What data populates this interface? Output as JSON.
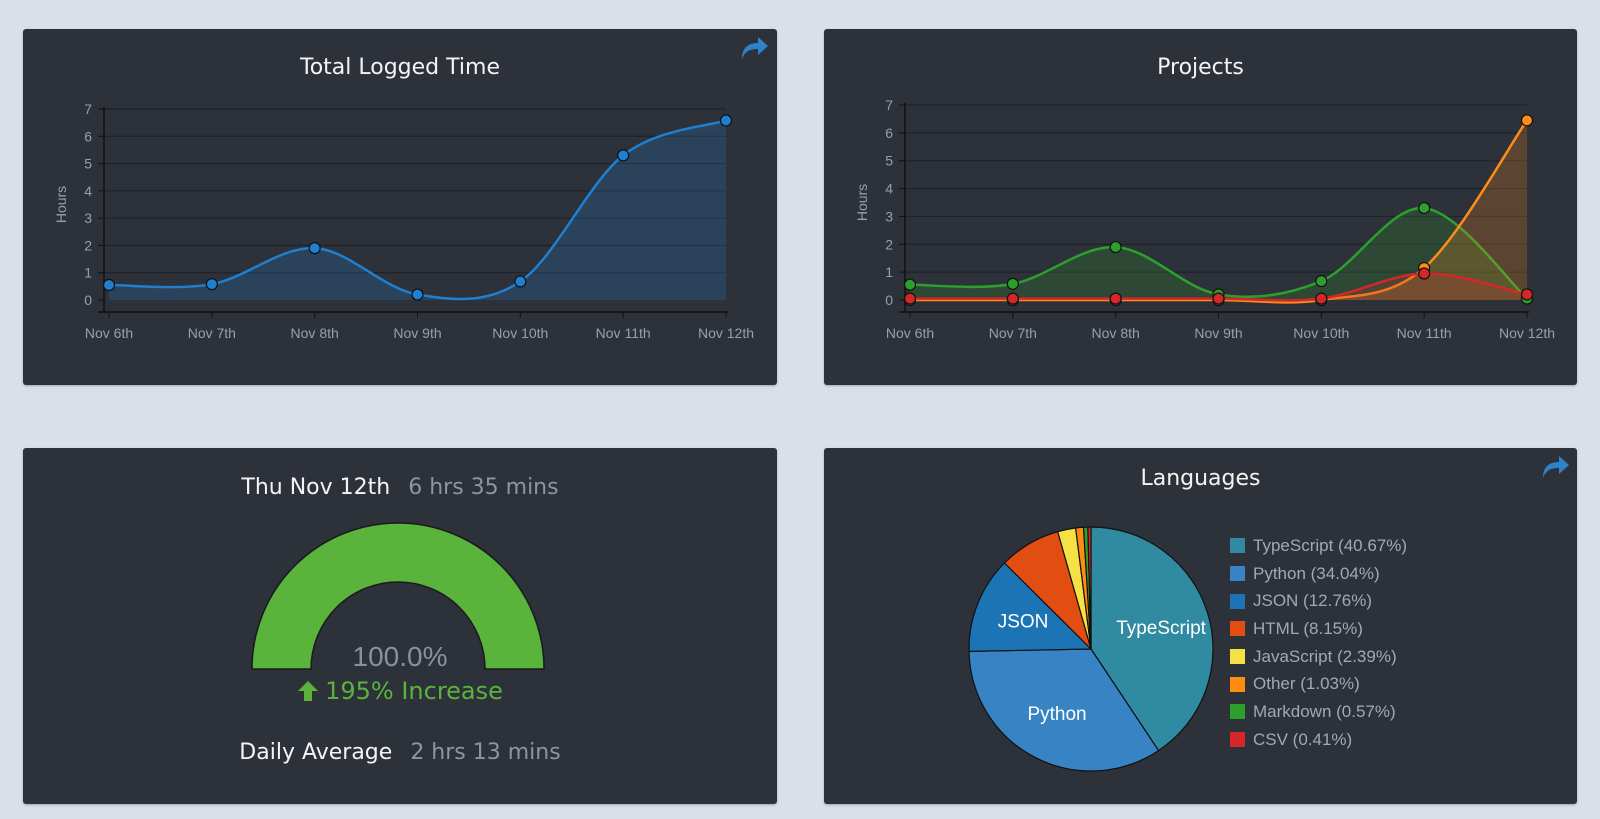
{
  "colors": {
    "background": "#d9e0e7",
    "card": "#2d3139",
    "axis_text": "#a0a6ae",
    "grid": "#1f2227",
    "accent_blue": "#3c8ad6",
    "gauge_green": "#5ab43c",
    "increase_green": "#5ab43c"
  },
  "cards": {
    "total_logged_time": {
      "title": "Total Logged Time",
      "share_icon": "share-arrow-icon"
    },
    "projects": {
      "title": "Projects"
    },
    "daily": {
      "date": "Thu Nov 12th",
      "time": "6 hrs 35 mins",
      "gauge_percent_label": "100.0%",
      "gauge_level": 1.0,
      "increase_icon": "arrow-up-icon",
      "increase_label": "195% Increase",
      "average_label": "Daily Average",
      "average_value": "2 hrs 13 mins"
    },
    "languages": {
      "title": "Languages",
      "share_icon": "share-arrow-icon"
    }
  },
  "chart_data": [
    {
      "id": "total-logged-time",
      "type": "area",
      "title": "Total Logged Time",
      "ylabel": "Hours",
      "ylim": [
        0,
        7
      ],
      "yticks": [
        "0",
        "1",
        "2",
        "3",
        "4",
        "5",
        "6",
        "7"
      ],
      "grid": true,
      "categories": [
        "Nov 6th",
        "Nov 7th",
        "Nov 8th",
        "Nov 9th",
        "Nov 10th",
        "Nov 11th",
        "Nov 12th"
      ],
      "series": [
        {
          "color": "#1f7fd0",
          "values": [
            0.55,
            0.58,
            1.9,
            0.2,
            0.68,
            5.3,
            6.58
          ]
        }
      ]
    },
    {
      "id": "projects",
      "type": "area",
      "title": "Projects",
      "ylabel": "Hours",
      "ylim": [
        0,
        7
      ],
      "yticks": [
        "0",
        "1",
        "2",
        "3",
        "4",
        "5",
        "6",
        "7"
      ],
      "grid": true,
      "categories": [
        "Nov 6th",
        "Nov 7th",
        "Nov 8th",
        "Nov 9th",
        "Nov 10th",
        "Nov 11th",
        "Nov 12th"
      ],
      "series": [
        {
          "color": "#2ca02c",
          "values": [
            0.55,
            0.58,
            1.9,
            0.2,
            0.68,
            3.3,
            0.05
          ]
        },
        {
          "color": "#ff8c1a",
          "values": [
            0.0,
            0.0,
            0.0,
            0.0,
            0.0,
            1.15,
            6.45
          ]
        },
        {
          "color": "#d62728",
          "values": [
            0.05,
            0.05,
            0.05,
            0.05,
            0.05,
            0.95,
            0.2
          ]
        }
      ]
    },
    {
      "id": "languages",
      "type": "pie",
      "title": "Languages",
      "legend_position": "right",
      "slices": [
        {
          "label": "TypeScript",
          "value": 40.67,
          "legend": "TypeScript (40.67%)",
          "color": "#2f8aa2",
          "show_label": true
        },
        {
          "label": "Python",
          "value": 34.04,
          "legend": "Python (34.04%)",
          "color": "#3883c4",
          "show_label": true
        },
        {
          "label": "JSON",
          "value": 12.76,
          "legend": "JSON (12.76%)",
          "color": "#1d74b5",
          "show_label": true
        },
        {
          "label": "HTML",
          "value": 8.15,
          "legend": "HTML (8.15%)",
          "color": "#e24d12",
          "show_label": false
        },
        {
          "label": "JavaScript",
          "value": 2.39,
          "legend": "JavaScript (2.39%)",
          "color": "#f4e244",
          "show_label": false
        },
        {
          "label": "Other",
          "value": 1.03,
          "legend": "Other (1.03%)",
          "color": "#ff8c12",
          "show_label": false
        },
        {
          "label": "Markdown",
          "value": 0.57,
          "legend": "Markdown (0.57%)",
          "color": "#2ca02c",
          "show_label": false
        },
        {
          "label": "CSV",
          "value": 0.41,
          "legend": "CSV (0.41%)",
          "color": "#d62728",
          "show_label": false
        }
      ]
    }
  ]
}
